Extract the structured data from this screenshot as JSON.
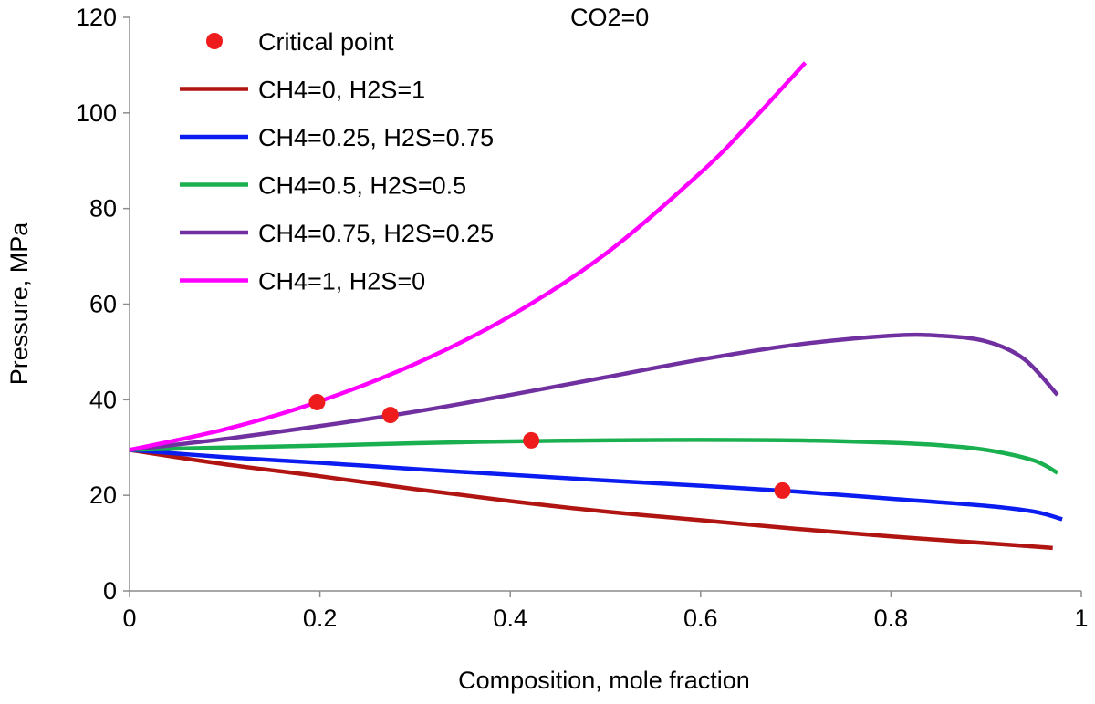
{
  "chart_data": {
    "type": "line",
    "title": "",
    "annotation": "CO2=0",
    "xlabel": "Composition, mole fraction",
    "ylabel": "Pressure, MPa",
    "xlim": [
      0,
      1
    ],
    "ylim": [
      0,
      120
    ],
    "x_ticks": [
      0,
      0.2,
      0.4,
      0.6,
      0.8,
      1
    ],
    "x_tick_labels": [
      "0",
      "0.2",
      "0.4",
      "0.6",
      "0.8",
      "1"
    ],
    "y_ticks": [
      0,
      20,
      40,
      60,
      80,
      100,
      120
    ],
    "y_tick_labels": [
      "0",
      "20",
      "40",
      "60",
      "80",
      "100",
      "120"
    ],
    "grid": false,
    "legend_position": "top-left",
    "critical_points": {
      "name": "Critical point",
      "color": "#ee1c1c",
      "points": [
        {
          "x": 0.197,
          "y": 39.5
        },
        {
          "x": 0.274,
          "y": 36.8
        },
        {
          "x": 0.422,
          "y": 31.5
        },
        {
          "x": 0.686,
          "y": 21.0
        }
      ]
    },
    "series": [
      {
        "name": "CH4=0, H2S=1",
        "color": "#b01512",
        "x": [
          0,
          0.1,
          0.2,
          0.3,
          0.4,
          0.5,
          0.6,
          0.7,
          0.8,
          0.9,
          0.97
        ],
        "y": [
          29.5,
          26.5,
          24.0,
          21.3,
          18.8,
          16.6,
          14.8,
          13.0,
          11.4,
          10.0,
          9.0
        ]
      },
      {
        "name": "CH4=0.25, H2S=0.75",
        "color": "#0a1cf0",
        "x": [
          0,
          0.1,
          0.2,
          0.3,
          0.4,
          0.5,
          0.6,
          0.7,
          0.8,
          0.9,
          0.95,
          0.98
        ],
        "y": [
          29.5,
          28.0,
          26.8,
          25.5,
          24.3,
          23.1,
          22.0,
          20.8,
          19.3,
          17.8,
          16.6,
          15.0
        ]
      },
      {
        "name": "CH4=0.5, H2S=0.5",
        "color": "#1ab050",
        "x": [
          0,
          0.1,
          0.2,
          0.3,
          0.4,
          0.5,
          0.6,
          0.7,
          0.8,
          0.85,
          0.9,
          0.95,
          0.975
        ],
        "y": [
          29.5,
          30.0,
          30.4,
          30.9,
          31.3,
          31.5,
          31.6,
          31.5,
          31.0,
          30.5,
          29.5,
          27.3,
          24.7
        ]
      },
      {
        "name": "CH4=0.75, H2S=0.25",
        "color": "#7030a0",
        "x": [
          0,
          0.1,
          0.2,
          0.3,
          0.4,
          0.5,
          0.6,
          0.7,
          0.8,
          0.85,
          0.9,
          0.94,
          0.975
        ],
        "y": [
          29.5,
          31.8,
          34.5,
          37.5,
          41.0,
          44.7,
          48.4,
          51.5,
          53.4,
          53.4,
          52.2,
          48.5,
          41.0
        ]
      },
      {
        "name": "CH4=1, H2S=0",
        "color": "#ff00ff",
        "x": [
          0,
          0.1,
          0.197,
          0.3,
          0.4,
          0.5,
          0.6,
          0.65,
          0.71
        ],
        "y": [
          29.5,
          33.8,
          39.5,
          47.5,
          57.5,
          70.5,
          87.5,
          97.5,
          110.5
        ]
      }
    ]
  }
}
